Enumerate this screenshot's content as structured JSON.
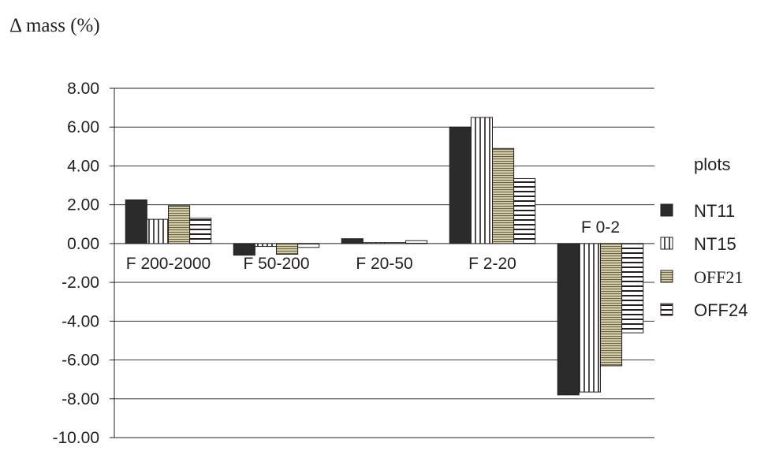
{
  "chart_data": {
    "type": "bar",
    "title": "Δ mass (%)",
    "xlabel": "",
    "ylabel": "",
    "categories": [
      "F 200-2000",
      "F 50-200",
      "F 20-50",
      "F 2-20",
      "F 0-2"
    ],
    "series": [
      {
        "name": "NT11",
        "values": [
          2.25,
          -0.6,
          0.25,
          6.0,
          -7.8
        ],
        "pattern": "solid",
        "color": "#2b2b2b"
      },
      {
        "name": "NT15",
        "values": [
          1.25,
          -0.15,
          0.05,
          6.5,
          -7.65
        ],
        "pattern": "vertical-lines",
        "color": "#231f20"
      },
      {
        "name": "OFF21",
        "values": [
          1.95,
          -0.55,
          0.05,
          4.9,
          -6.3
        ],
        "pattern": "dense-horizontal-tan",
        "color": "#d8d0a8"
      },
      {
        "name": "OFF24",
        "values": [
          1.3,
          -0.2,
          0.15,
          3.35,
          -4.6
        ],
        "pattern": "horizontal-lines",
        "color": "#231f20"
      }
    ],
    "ylim": [
      -10,
      8
    ],
    "yticks": [
      8,
      6,
      4,
      2,
      0,
      -2,
      -4,
      -6,
      -8,
      -10
    ],
    "ytick_labels": [
      "8.00",
      "6.00",
      "4.00",
      "2.00",
      "0.00",
      "-2.00",
      "-4.00",
      "-6.00",
      "-8.00",
      "-10.00"
    ],
    "grid": true,
    "legend": {
      "title": "plots",
      "position": "right"
    }
  }
}
